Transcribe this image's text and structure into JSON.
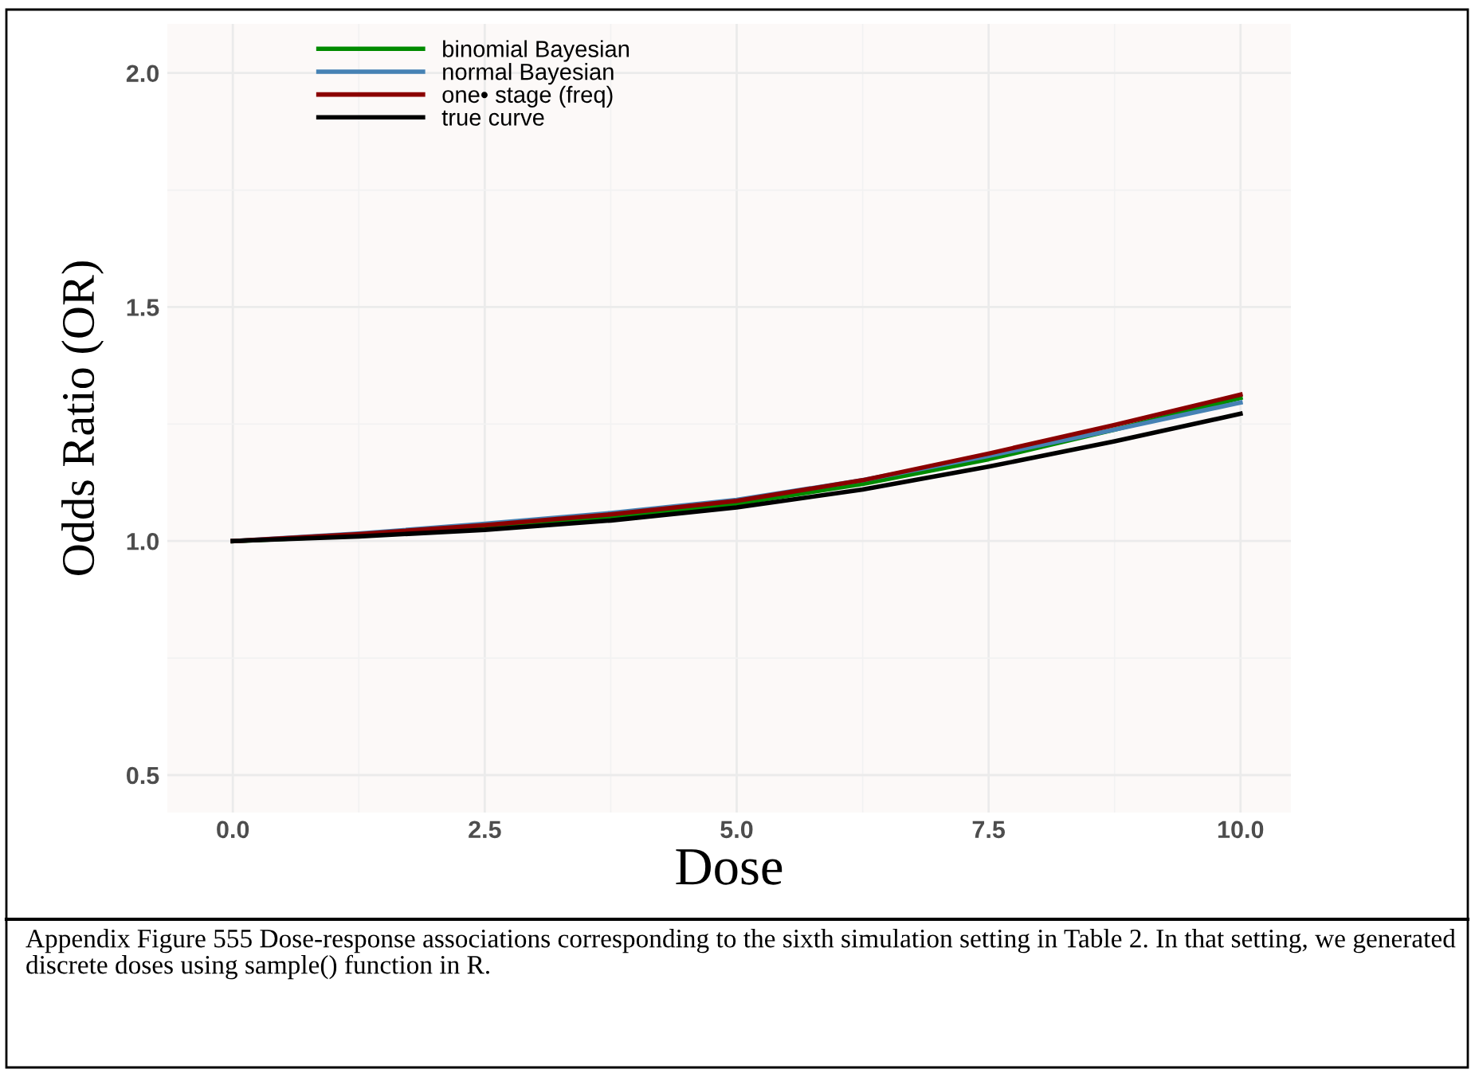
{
  "chart_data": {
    "type": "line",
    "xlabel": "Dose",
    "ylabel": "Odds Ratio (OR)",
    "x": [
      0,
      1.25,
      2.5,
      3.75,
      5,
      6.25,
      7.5,
      8.75,
      10
    ],
    "series": [
      {
        "name": "binomial Bayesian",
        "color": "#008b00",
        "values": [
          1.0,
          1.012,
          1.027,
          1.05,
          1.08,
          1.122,
          1.175,
          1.238,
          1.306
        ]
      },
      {
        "name": "normal Bayesian",
        "color": "#4682b4",
        "values": [
          1.0,
          1.016,
          1.037,
          1.06,
          1.088,
          1.13,
          1.182,
          1.238,
          1.296
        ]
      },
      {
        "name": "one• stage (freq)",
        "color": "#8b0000",
        "values": [
          1.0,
          1.015,
          1.034,
          1.057,
          1.086,
          1.13,
          1.187,
          1.248,
          1.313
        ]
      },
      {
        "name": "true curve",
        "color": "#000000",
        "values": [
          1.0,
          1.01,
          1.024,
          1.044,
          1.072,
          1.11,
          1.159,
          1.213,
          1.272
        ]
      }
    ],
    "xlim": [
      -0.65,
      10.5
    ],
    "xticks": [
      {
        "value": 0,
        "label": "0.0"
      },
      2.5,
      {
        "value": 5,
        "label": "5.0"
      },
      7.5,
      {
        "value": 10,
        "label": "10.0"
      }
    ],
    "ylim": [
      0.42,
      2.105
    ],
    "yticks": [
      0.5,
      {
        "value": 1,
        "label": "1.0"
      },
      1.5,
      {
        "value": 2,
        "label": "2.0"
      }
    ],
    "grid": true,
    "legend": "top left",
    "annotations": [
      "Appendix Figure 555 Dose-response associations corresponding to the sixth simulation setting in Table 2. In that setting, we generated discrete doses using sample() function in R."
    ]
  }
}
